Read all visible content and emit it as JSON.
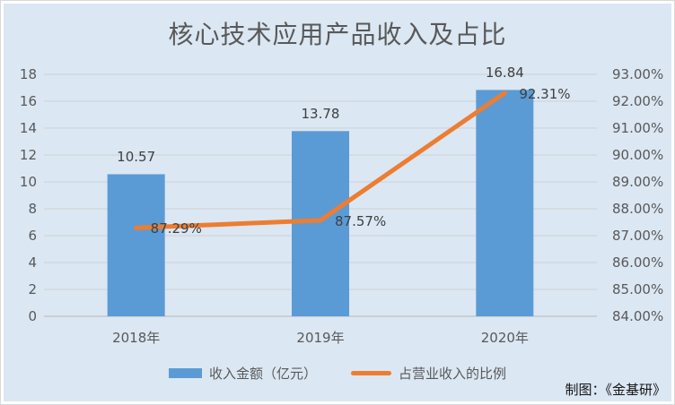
{
  "credit": "制图：《金基研》",
  "colors": {
    "background": "#DBE7F3",
    "bar": "#5B9BD5",
    "line": "#ED7D31",
    "gridline": "#D3D8DC",
    "axis_line": "#C9CFD6",
    "tick_text": "#595959",
    "label_text": "#3F3F3F",
    "title_text": "#595959"
  },
  "chart_data": {
    "type": "combo",
    "title": "核心技术应用产品收入及占比",
    "categories": [
      "2018年",
      "2019年",
      "2020年"
    ],
    "series": [
      {
        "name": "收入金额（亿元）",
        "type": "bar",
        "axis": "left",
        "color": "#5B9BD5",
        "values": [
          10.57,
          13.78,
          16.84
        ],
        "labels": [
          "10.57",
          "13.78",
          "16.84"
        ]
      },
      {
        "name": "占营业收入的比例",
        "type": "line",
        "axis": "right",
        "color": "#ED7D31",
        "values": [
          87.29,
          87.57,
          92.31
        ],
        "labels": [
          "87.29%",
          "87.57%",
          "92.31%"
        ]
      }
    ],
    "left_axis": {
      "min": 0,
      "max": 18,
      "step": 2,
      "ticks": [
        "0",
        "2",
        "4",
        "6",
        "8",
        "10",
        "12",
        "14",
        "16",
        "18"
      ]
    },
    "right_axis": {
      "min": 84,
      "max": 93,
      "step": 1,
      "ticks": [
        "84.00%",
        "85.00%",
        "86.00%",
        "87.00%",
        "88.00%",
        "89.00%",
        "90.00%",
        "91.00%",
        "92.00%",
        "93.00%"
      ]
    },
    "grid": true,
    "legend_position": "bottom"
  }
}
